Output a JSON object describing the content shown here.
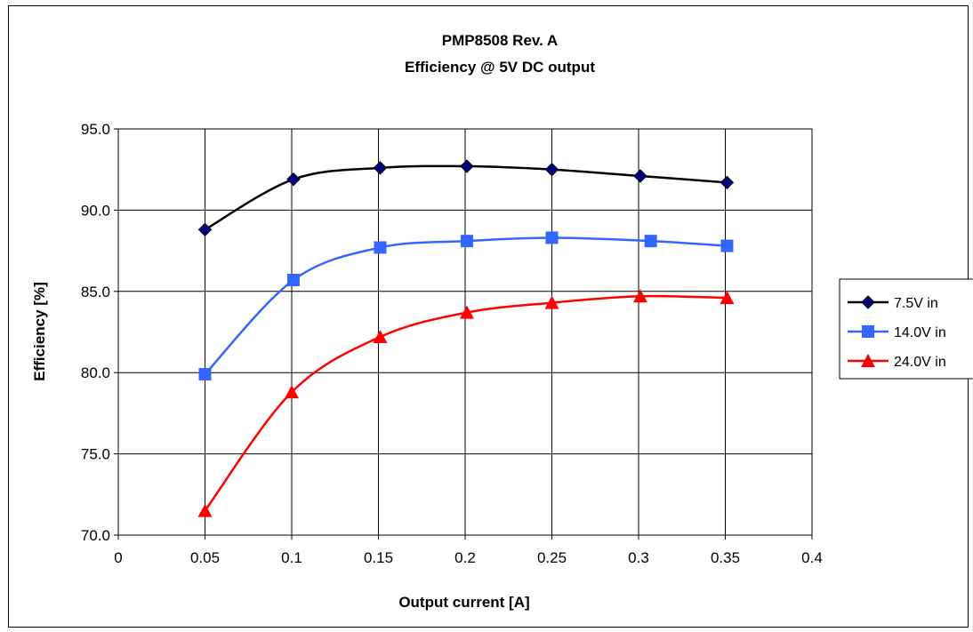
{
  "chart_data": {
    "type": "line",
    "title": "PMP8508 Rev. A",
    "subtitle": "Efficiency @ 5V DC output",
    "xlabel": "Output current [A]",
    "ylabel": "Efficiency [%]",
    "xlim": [
      0,
      0.4
    ],
    "ylim": [
      70.0,
      95.0
    ],
    "x_ticks": [
      "0",
      "0.05",
      "0.1",
      "0.15",
      "0.2",
      "0.25",
      "0.3",
      "0.35",
      "0.4"
    ],
    "y_ticks": [
      "70.0",
      "75.0",
      "80.0",
      "85.0",
      "90.0",
      "95.0"
    ],
    "grid": true,
    "legend_position": "right",
    "series": [
      {
        "name": "7.5V in",
        "color": "#000000",
        "marker": "diamond",
        "marker_color": "#000080",
        "x": [
          0.05,
          0.101,
          0.151,
          0.201,
          0.25,
          0.301,
          0.351
        ],
        "y": [
          88.8,
          91.9,
          92.6,
          92.7,
          92.5,
          92.1,
          91.7
        ]
      },
      {
        "name": "14.0V in",
        "color": "#3366FF",
        "marker": "square",
        "marker_color": "#3366FF",
        "x": [
          0.05,
          0.101,
          0.151,
          0.201,
          0.25,
          0.307,
          0.351
        ],
        "y": [
          79.9,
          85.7,
          87.7,
          88.1,
          88.3,
          88.1,
          87.8
        ]
      },
      {
        "name": "24.0V in",
        "color": "#FF0000",
        "marker": "triangle",
        "marker_color": "#FF0000",
        "x": [
          0.05,
          0.1,
          0.151,
          0.201,
          0.25,
          0.301,
          0.351
        ],
        "y": [
          71.5,
          78.8,
          82.2,
          83.7,
          84.3,
          84.7,
          84.6
        ]
      }
    ]
  }
}
